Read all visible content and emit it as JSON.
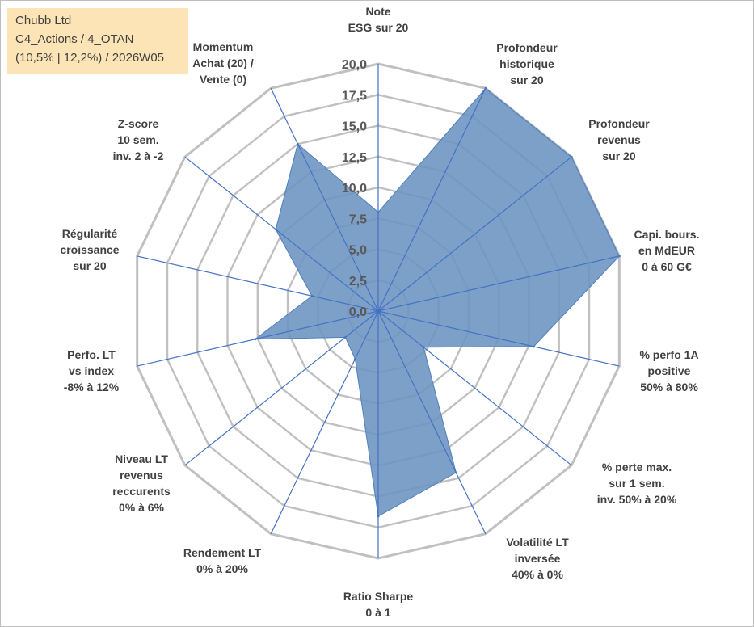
{
  "info_box": {
    "line1": "Chubb Ltd",
    "line2": "C4_Actions / 4_OTAN",
    "line3": "(10,5% | 12,2%) / 2026W05"
  },
  "colors": {
    "fill": "#6b93c2",
    "stroke": "#4f7fbf",
    "grid": "#c0c0c0",
    "spoke": "#4472c4"
  },
  "chart_data": {
    "type": "radar",
    "title": "",
    "rmax": 20,
    "ticks": [
      "0,0",
      "2,5",
      "5,0",
      "7,5",
      "10,0",
      "12,5",
      "15,0",
      "17,5",
      "20,0"
    ],
    "tick_values": [
      0,
      2.5,
      5,
      7.5,
      10,
      12.5,
      15,
      17.5,
      20
    ],
    "axes": [
      {
        "label": [
          "Note",
          "ESG sur 20"
        ],
        "value": 8.0
      },
      {
        "label": [
          "Profondeur",
          "historique",
          "sur 20"
        ],
        "value": 20.0
      },
      {
        "label": [
          "Profondeur",
          "revenus",
          "sur 20"
        ],
        "value": 20.0
      },
      {
        "label": [
          "Capi. bours.",
          "en MdEUR",
          "0 à 60 G€"
        ],
        "value": 20.0
      },
      {
        "label": [
          "% perfo 1A",
          "positive",
          "50% à 80%"
        ],
        "value": 12.9
      },
      {
        "label": [
          "% perte max.",
          "sur 1 sem.",
          "inv. 50% à 20%"
        ],
        "value": 4.7
      },
      {
        "label": [
          "Volatilité LT",
          "inversée",
          "40% à 0%"
        ],
        "value": 14.5
      },
      {
        "label": [
          "Ratio Sharpe",
          "0 à 1"
        ],
        "value": 16.6
      },
      {
        "label": [
          "Rendement LT",
          "0% à 20%"
        ],
        "value": 4.3
      },
      {
        "label": [
          "Niveau LT",
          "revenus",
          "reccurents",
          "0% à 6%"
        ],
        "value": 3.4
      },
      {
        "label": [
          "Perfo. LT",
          "vs index",
          "-8% à 12%"
        ],
        "value": 10.2
      },
      {
        "label": [
          "Régularité",
          "croissance",
          "sur 20"
        ],
        "value": 5.5
      },
      {
        "label": [
          "Z-score",
          "10 sem.",
          "inv. 2 à -2"
        ],
        "value": 10.6
      },
      {
        "label": [
          "Momentum",
          "Achat (20) /",
          "Vente (0)"
        ],
        "value": 15.0
      }
    ]
  }
}
